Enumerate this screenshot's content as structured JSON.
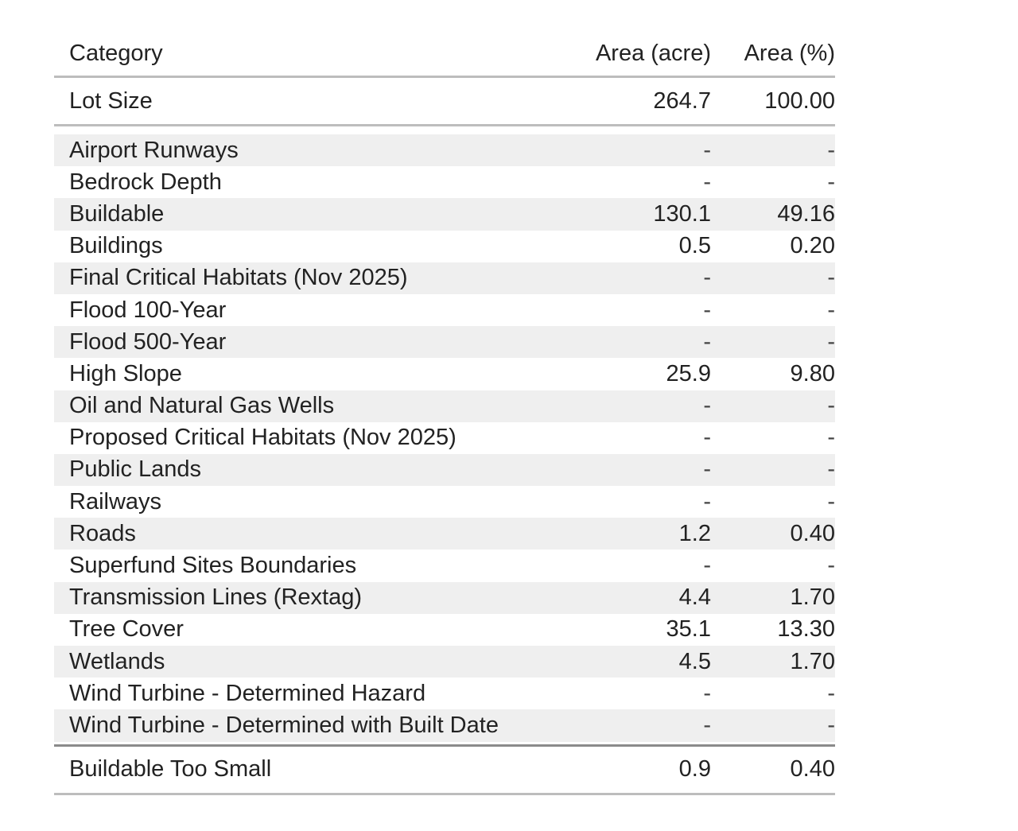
{
  "columns": {
    "category": "Category",
    "area_acre": "Area (acre)",
    "area_pct": "Area (%)"
  },
  "lot_size": {
    "category": "Lot Size",
    "area_acre": "264.7",
    "area_pct": "100.00"
  },
  "rows": [
    {
      "category": "Airport Runways",
      "area_acre": "-",
      "area_pct": "-"
    },
    {
      "category": "Bedrock Depth",
      "area_acre": "-",
      "area_pct": "-"
    },
    {
      "category": "Buildable",
      "area_acre": "130.1",
      "area_pct": "49.16"
    },
    {
      "category": "Buildings",
      "area_acre": "0.5",
      "area_pct": "0.20"
    },
    {
      "category": "Final Critical Habitats (Nov 2025)",
      "area_acre": "-",
      "area_pct": "-"
    },
    {
      "category": "Flood 100-Year",
      "area_acre": "-",
      "area_pct": "-"
    },
    {
      "category": "Flood 500-Year",
      "area_acre": "-",
      "area_pct": "-"
    },
    {
      "category": "High Slope",
      "area_acre": "25.9",
      "area_pct": "9.80"
    },
    {
      "category": "Oil and Natural Gas Wells",
      "area_acre": "-",
      "area_pct": "-"
    },
    {
      "category": "Proposed Critical Habitats (Nov 2025)",
      "area_acre": "-",
      "area_pct": "-"
    },
    {
      "category": "Public Lands",
      "area_acre": "-",
      "area_pct": "-"
    },
    {
      "category": "Railways",
      "area_acre": "-",
      "area_pct": "-"
    },
    {
      "category": "Roads",
      "area_acre": "1.2",
      "area_pct": "0.40"
    },
    {
      "category": "Superfund Sites Boundaries",
      "area_acre": "-",
      "area_pct": "-"
    },
    {
      "category": "Transmission Lines (Rextag)",
      "area_acre": "4.4",
      "area_pct": "1.70"
    },
    {
      "category": "Tree Cover",
      "area_acre": "35.1",
      "area_pct": "13.30"
    },
    {
      "category": "Wetlands",
      "area_acre": "4.5",
      "area_pct": "1.70"
    },
    {
      "category": "Wind Turbine - Determined Hazard",
      "area_acre": "-",
      "area_pct": "-"
    },
    {
      "category": "Wind Turbine - Determined with Built Date",
      "area_acre": "-",
      "area_pct": "-"
    }
  ],
  "buildable_too_small": {
    "category": "Buildable Too Small",
    "area_acre": "0.9",
    "area_pct": "0.40"
  },
  "colors": {
    "stripe": "#efefef",
    "rule": "#bdbdbd",
    "text": "#222222"
  }
}
